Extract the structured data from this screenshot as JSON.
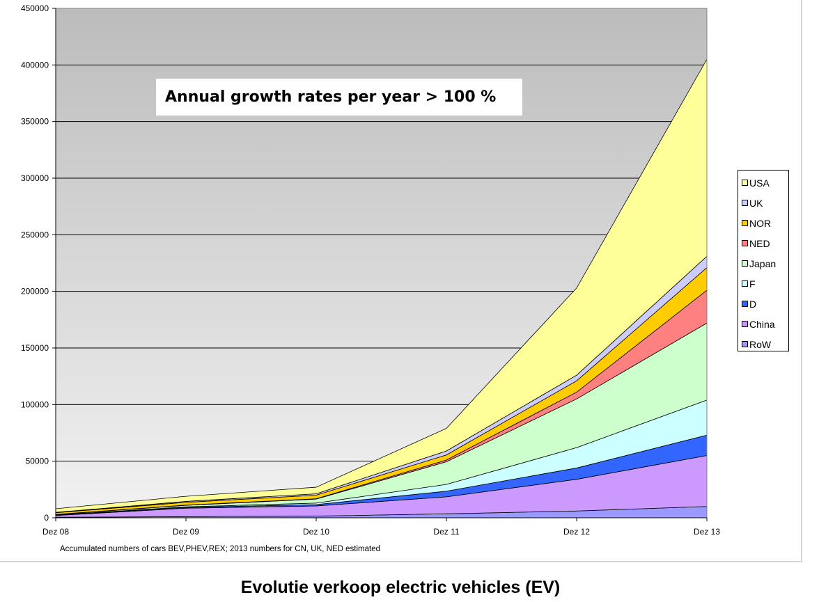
{
  "caption": "Evolutie verkoop electric vehicles (EV)",
  "chart_data": {
    "type": "area",
    "stacked": true,
    "title": "",
    "xlabel": "",
    "ylabel": "",
    "categories": [
      "Dez 08",
      "Dez 09",
      "Dez 10",
      "Dez 11",
      "Dez 12",
      "Dez 13"
    ],
    "ylim": [
      0,
      450000
    ],
    "yticks": [
      0,
      50000,
      100000,
      150000,
      200000,
      250000,
      300000,
      350000,
      400000,
      450000
    ],
    "ytick_labels": [
      "0",
      "50000",
      "100000",
      "150000",
      "200000",
      "250000",
      "300000",
      "350000",
      "400000",
      "450000"
    ],
    "grid": true,
    "legend_position": "right",
    "series": [
      {
        "name": "RoW",
        "color": "#9999ff",
        "values": [
          500,
          1000,
          1500,
          3500,
          6000,
          10000
        ]
      },
      {
        "name": "China",
        "color": "#cc99ff",
        "values": [
          1500,
          7500,
          9000,
          15000,
          28000,
          45000
        ]
      },
      {
        "name": "D",
        "color": "#3366ff",
        "values": [
          300,
          700,
          1200,
          5000,
          10000,
          18000
        ]
      },
      {
        "name": "F",
        "color": "#ccffff",
        "values": [
          200,
          500,
          1300,
          6000,
          18000,
          31000
        ]
      },
      {
        "name": "Japan",
        "color": "#ccffcc",
        "values": [
          400,
          1300,
          3500,
          20000,
          43000,
          68000
        ]
      },
      {
        "name": "NED",
        "color": "#ff8080",
        "values": [
          100,
          200,
          300,
          1500,
          6000,
          29000
        ]
      },
      {
        "name": "NOR",
        "color": "#ffcc00",
        "values": [
          1500,
          2500,
          3200,
          4500,
          10000,
          20000
        ]
      },
      {
        "name": "UK",
        "color": "#ccccff",
        "values": [
          300,
          800,
          1200,
          3500,
          5000,
          10000
        ]
      },
      {
        "name": "USA",
        "color": "#ffff99",
        "values": [
          3200,
          4500,
          5800,
          20000,
          77000,
          174000
        ]
      }
    ],
    "annotation": "Annual growth rates per year > 100 %",
    "footnote": "Accumulated numbers of cars  BEV,PHEV,REX; 2013 numbers for CN, UK, NED estimated"
  }
}
